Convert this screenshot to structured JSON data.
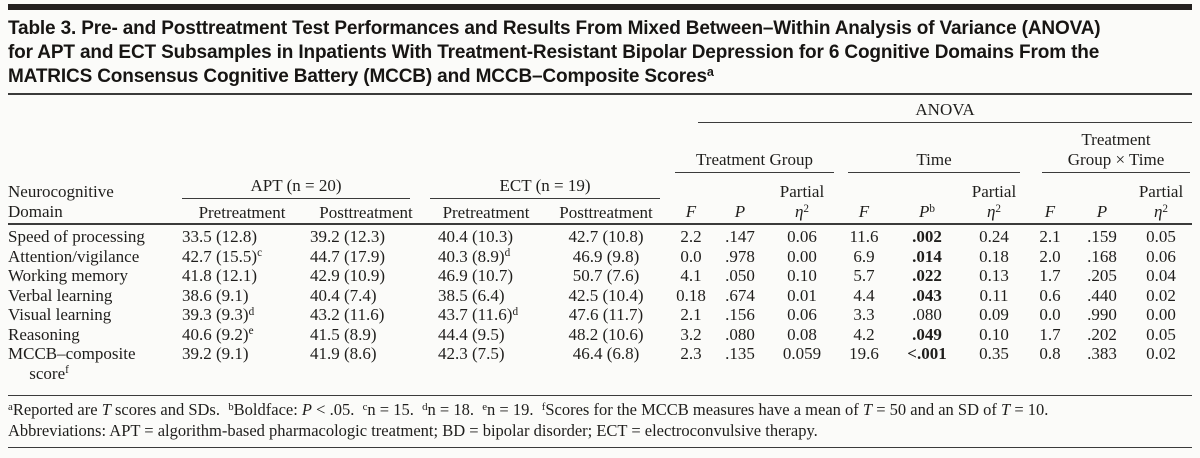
{
  "colors": {
    "background": "#fbfbf9",
    "rule": "#3b3b3b",
    "title_bar": "#242120",
    "text": "#1f1e1c"
  },
  "title_rich": [
    {
      "t": "Table 3. Pre- and Posttreatment Test Performances and Results From Mixed Between–Within Analysis of Variance (ANOVA)"
    },
    {
      "br": true
    },
    {
      "t": "for APT and ECT Subsamples in Inpatients With Treatment-Resistant Bipolar Depression for 6 Cognitive Domains From the"
    },
    {
      "br": true
    },
    {
      "t": "MATRICS Consensus Cognitive Battery (MCCB) and MCCB–Composite Scores"
    },
    {
      "t": "a",
      "sup": true
    }
  ],
  "header": {
    "anova_label": "ANOVA",
    "treatment_group": "Treatment Group",
    "time": "Time",
    "group_x_time": [
      {
        "t": "Treatment"
      },
      {
        "br": true
      },
      {
        "t": "Group × Time"
      }
    ],
    "domain_label": [
      {
        "t": "Neurocognitive"
      },
      {
        "br": true
      },
      {
        "t": "Domain"
      }
    ],
    "apt_label": "APT (n = 20)",
    "ect_label": "ECT (n = 19)",
    "pretreatment": "Pretreatment",
    "posttreatment": "Posttreatment",
    "f": [
      {
        "t": "F",
        "i": true
      }
    ],
    "p": [
      {
        "t": "P",
        "i": true
      }
    ],
    "p_b": [
      {
        "t": "P",
        "i": true
      },
      {
        "t": "b",
        "sup": true
      }
    ],
    "partial_eta": [
      {
        "t": "Partial"
      },
      {
        "br": true
      },
      {
        "t": "η",
        "i": true
      },
      {
        "t": "2",
        "sup": true
      }
    ]
  },
  "rows": [
    {
      "domain": "Speed of processing",
      "scores": [
        "33.5 (12.8)",
        "39.2 (12.3)",
        "40.4 (10.3)",
        "42.7 (10.8)"
      ],
      "stats": [
        "2.2",
        ".147",
        "0.06",
        "11.6",
        [
          {
            "t": ".002",
            "b": true
          }
        ],
        "0.24",
        "2.1",
        ".159",
        "0.05"
      ]
    },
    {
      "domain": "Attention/vigilance",
      "scores": [
        [
          {
            "t": "42.7 (15.5)"
          },
          {
            "t": "c",
            "sup": true
          }
        ],
        "44.7 (17.9)",
        [
          {
            "t": "40.3 (8.9)"
          },
          {
            "t": "d",
            "sup": true
          }
        ],
        "46.9 (9.8)"
      ],
      "stats": [
        "0.0",
        ".978",
        "0.00",
        "6.9",
        [
          {
            "t": ".014",
            "b": true
          }
        ],
        "0.18",
        "2.0",
        ".168",
        "0.06"
      ]
    },
    {
      "domain": "Working memory",
      "scores": [
        "41.8 (12.1)",
        "42.9 (10.9)",
        "46.9 (10.7)",
        "50.7 (7.6)"
      ],
      "stats": [
        "4.1",
        ".050",
        "0.10",
        "5.7",
        [
          {
            "t": ".022",
            "b": true
          }
        ],
        "0.13",
        "1.7",
        ".205",
        "0.04"
      ]
    },
    {
      "domain": "Verbal learning",
      "scores": [
        "38.6 (9.1)",
        "40.4 (7.4)",
        "38.5 (6.4)",
        "42.5 (10.4)"
      ],
      "stats": [
        "0.18",
        ".674",
        "0.01",
        "4.4",
        [
          {
            "t": ".043",
            "b": true
          }
        ],
        "0.11",
        "0.6",
        ".440",
        "0.02"
      ]
    },
    {
      "domain": "Visual learning",
      "scores": [
        [
          {
            "t": "39.3 (9.3)"
          },
          {
            "t": "d",
            "sup": true
          }
        ],
        "43.2 (11.6)",
        [
          {
            "t": "43.7 (11.6)"
          },
          {
            "t": "d",
            "sup": true
          }
        ],
        "47.6 (11.7)"
      ],
      "stats": [
        "2.1",
        ".156",
        "0.06",
        "3.3",
        ".080",
        "0.09",
        "0.0",
        ".990",
        "0.00"
      ]
    },
    {
      "domain": "Reasoning",
      "scores": [
        [
          {
            "t": "40.6 (9.2)"
          },
          {
            "t": "e",
            "sup": true
          }
        ],
        "41.5 (8.9)",
        "44.4 (9.5)",
        "48.2 (10.6)"
      ],
      "stats": [
        "3.2",
        ".080",
        "0.08",
        "4.2",
        [
          {
            "t": ".049",
            "b": true
          }
        ],
        "0.10",
        "1.7",
        ".202",
        "0.05"
      ]
    },
    {
      "domain": [
        {
          "t": "MCCB–composite"
        },
        {
          "br": true
        },
        {
          "t": "     score"
        },
        {
          "t": "f",
          "sup": true
        }
      ],
      "scores": [
        "39.2 (9.1)",
        "41.9 (8.6)",
        "42.3 (7.5)",
        "46.4 (6.8)"
      ],
      "stats": [
        "2.3",
        ".135",
        "0.059",
        "19.6",
        [
          {
            "t": "<.001",
            "b": true
          }
        ],
        "0.35",
        "0.8",
        ".383",
        "0.02"
      ]
    }
  ],
  "footnotes": {
    "line1": [
      {
        "t": "a",
        "sup": true
      },
      {
        "t": "Reported are "
      },
      {
        "t": "T",
        "i": true
      },
      {
        "t": " scores and SDs. "
      },
      {
        "t": "b",
        "sup": true
      },
      {
        "t": "Boldface: "
      },
      {
        "t": "P",
        "i": true
      },
      {
        "t": " < .05. "
      },
      {
        "t": "c",
        "sup": true
      },
      {
        "t": "n = 15. "
      },
      {
        "t": "d",
        "sup": true
      },
      {
        "t": "n = 18. "
      },
      {
        "t": "e",
        "sup": true
      },
      {
        "t": "n = 19. "
      },
      {
        "t": "f",
        "sup": true
      },
      {
        "t": "Scores for the MCCB measures have a mean of "
      },
      {
        "t": "T",
        "i": true
      },
      {
        "t": " = 50 and an SD of "
      },
      {
        "t": "T",
        "i": true
      },
      {
        "t": " = 10."
      }
    ],
    "line2": "Abbreviations: APT = algorithm-based pharmacologic treatment; BD = bipolar disorder; ECT = electroconvulsive therapy."
  }
}
